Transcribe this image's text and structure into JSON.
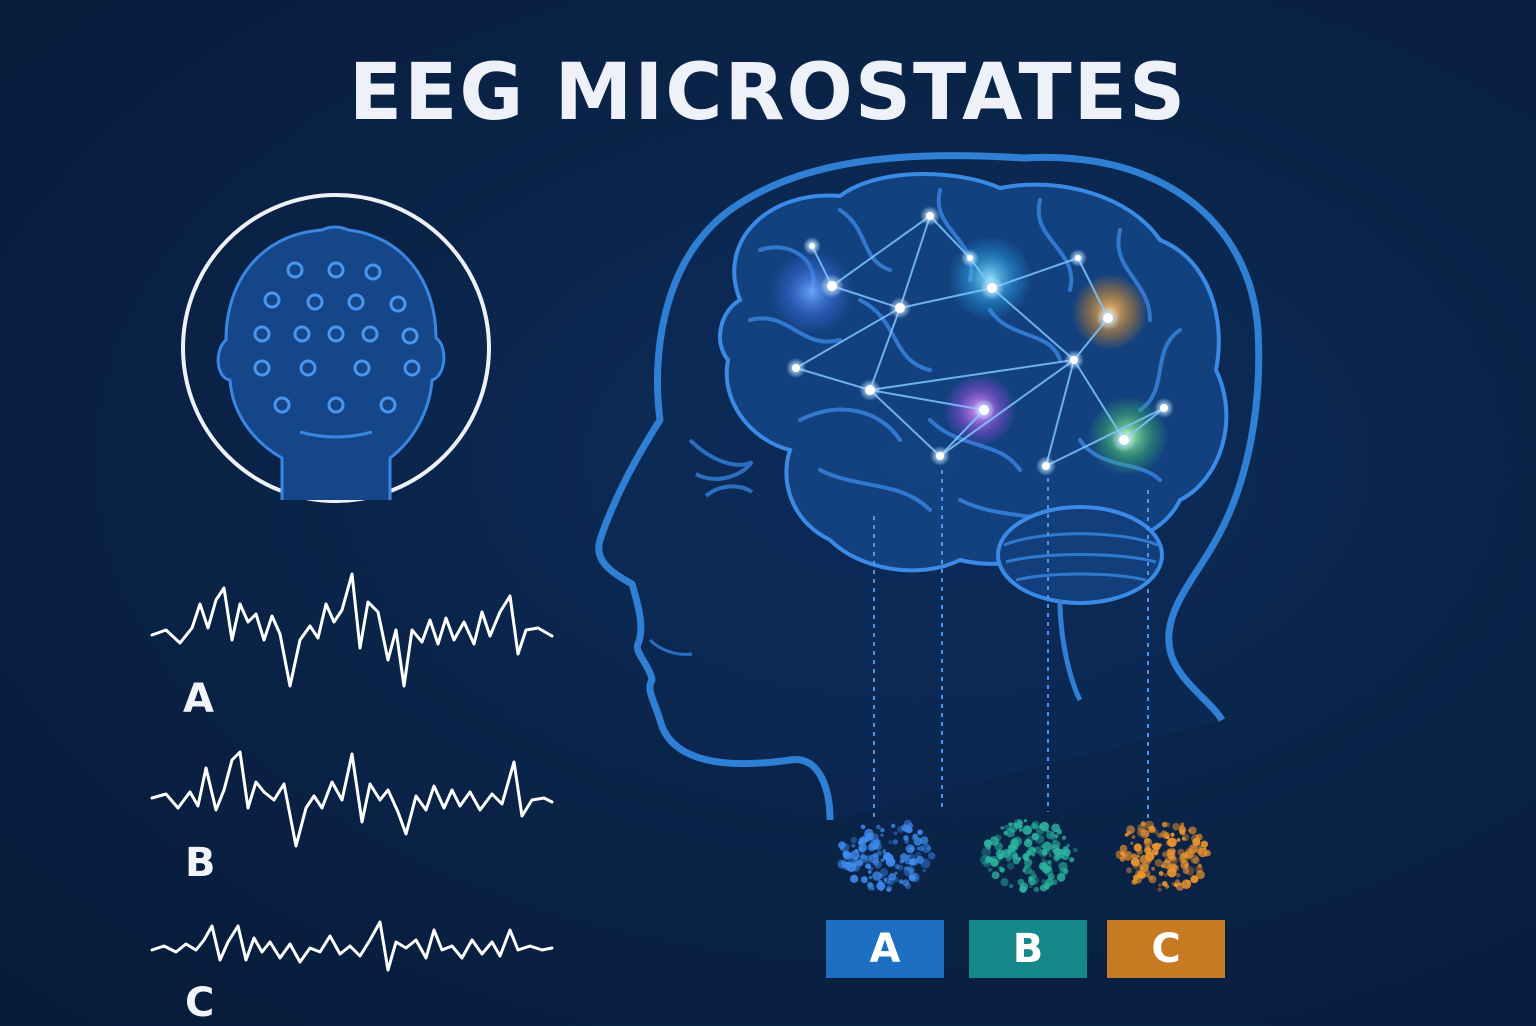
{
  "title": "EEG MICROSTATES",
  "waveforms": [
    {
      "label": "A"
    },
    {
      "label": "B"
    },
    {
      "label": "C"
    }
  ],
  "states": [
    {
      "label": "A",
      "color": "#1d6fc4",
      "blob_color": "#3f8cf0"
    },
    {
      "label": "B",
      "color": "#17888a",
      "blob_color": "#2bb5a0"
    },
    {
      "label": "C",
      "color": "#c67a22",
      "blob_color": "#f0962e"
    }
  ],
  "icons": [
    "eeg-cap-head-icon",
    "head-profile-icon",
    "brain-icon"
  ]
}
